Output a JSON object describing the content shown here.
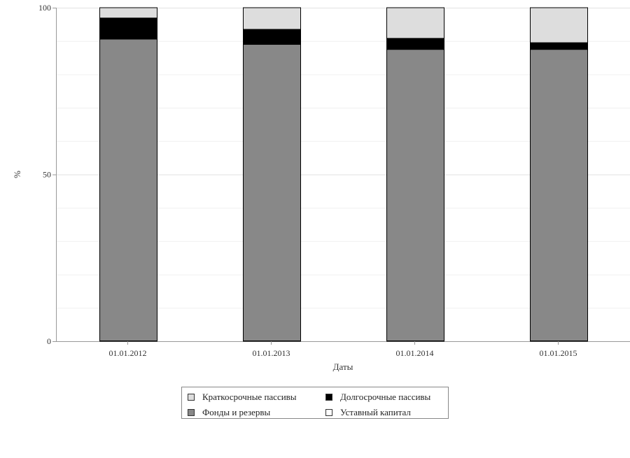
{
  "chart_data": {
    "type": "bar",
    "stacked": true,
    "xlabel": "Даты",
    "ylabel": "%",
    "ylim": [
      0,
      100
    ],
    "yticks": [
      0,
      50,
      100
    ],
    "grid": true,
    "categories": [
      "01.01.2012",
      "01.01.2013",
      "01.01.2014",
      "01.01.2015"
    ],
    "series": [
      {
        "name": "Уставный капитал",
        "color": "#ffffff",
        "values": [
          0.1,
          0.1,
          0.1,
          0.1
        ]
      },
      {
        "name": "Фонды и резервы",
        "color": "#888888",
        "values": [
          90.5,
          88.9,
          87.4,
          87.4
        ]
      },
      {
        "name": "Долгосрочные пассивы",
        "color": "#000000",
        "values": [
          6.3,
          4.5,
          3.3,
          2.0
        ]
      },
      {
        "name": "Краткосрочные пассивы",
        "color": "#dddddd",
        "values": [
          3.1,
          6.5,
          9.2,
          10.5
        ]
      }
    ],
    "legend_position": "bottom-center",
    "legend_order": [
      "Краткосрочные пассивы",
      "Долгосрочные пассивы",
      "Фонды и резервы",
      "Уставный капитал"
    ]
  }
}
